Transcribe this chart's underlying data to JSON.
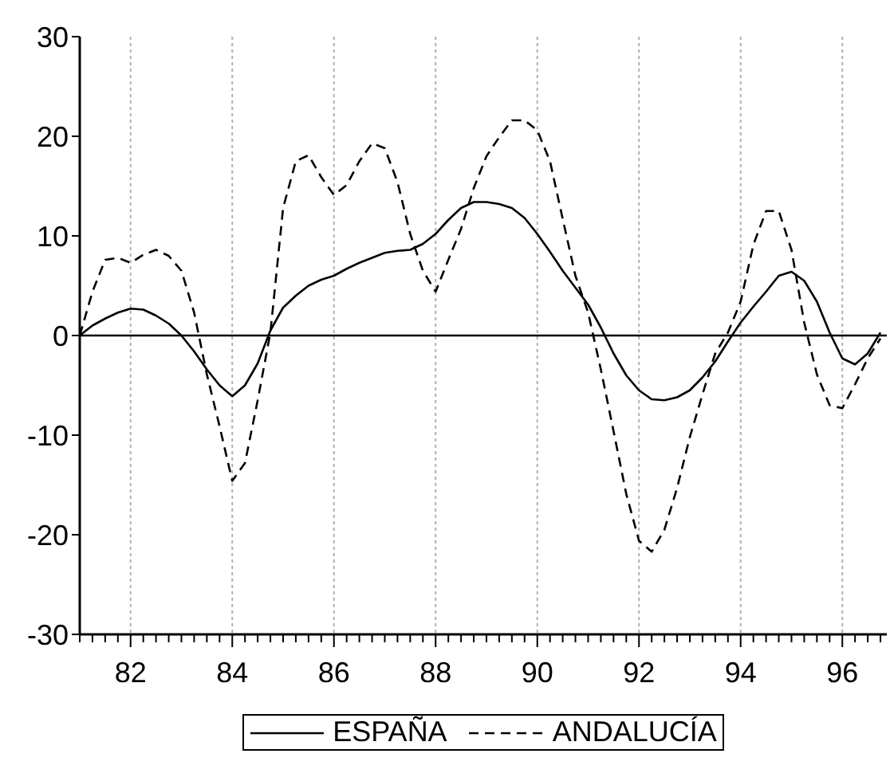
{
  "chart_data": {
    "type": "line",
    "x": [
      81,
      81.25,
      81.5,
      81.75,
      82,
      82.25,
      82.5,
      82.75,
      83,
      83.25,
      83.5,
      83.75,
      84,
      84.25,
      84.5,
      84.75,
      85,
      85.25,
      85.5,
      85.75,
      86,
      86.25,
      86.5,
      86.75,
      87,
      87.25,
      87.5,
      87.75,
      88,
      88.25,
      88.5,
      88.75,
      89,
      89.25,
      89.5,
      89.75,
      90,
      90.25,
      90.5,
      90.75,
      91,
      91.25,
      91.5,
      91.75,
      92,
      92.25,
      92.5,
      92.75,
      93,
      93.25,
      93.5,
      93.75,
      94,
      94.25,
      94.5,
      94.75,
      95,
      95.25,
      95.5,
      95.75,
      96,
      96.25,
      96.5,
      96.75
    ],
    "series": [
      {
        "name": "ESPAÑA",
        "color": "#000000",
        "line_style": "solid",
        "values": [
          0,
          1.0,
          1.7,
          2.3,
          2.7,
          2.6,
          2.0,
          1.2,
          0,
          -1.6,
          -3.4,
          -5.0,
          -6.1,
          -5.0,
          -2.8,
          0.5,
          2.8,
          4.0,
          5.0,
          5.6,
          6.0,
          6.7,
          7.3,
          7.8,
          8.3,
          8.5,
          8.6,
          9.2,
          10.2,
          11.6,
          12.8,
          13.4,
          13.4,
          13.2,
          12.8,
          11.8,
          10.2,
          8.4,
          6.5,
          4.8,
          3.1,
          0.8,
          -1.8,
          -4.0,
          -5.5,
          -6.4,
          -6.5,
          -6.2,
          -5.5,
          -4.2,
          -2.6,
          -0.6,
          1.3,
          2.9,
          4.4,
          6.0,
          6.4,
          5.5,
          3.4,
          0.3,
          -2.3,
          -2.9,
          -1.8,
          0.3
        ]
      },
      {
        "name": "ANDALUCÍA",
        "color": "#000000",
        "line_style": "dashed",
        "values": [
          0,
          4.4,
          7.6,
          7.8,
          7.3,
          8.1,
          8.6,
          8.0,
          6.5,
          2.3,
          -3.9,
          -9.1,
          -14.6,
          -12.8,
          -6.5,
          0.3,
          12.8,
          17.5,
          18.1,
          15.9,
          14.1,
          15.1,
          17.5,
          19.3,
          18.8,
          15.4,
          10.2,
          6.5,
          4.4,
          7.6,
          10.7,
          14.8,
          18.0,
          19.9,
          21.6,
          21.6,
          20.6,
          17.5,
          11.7,
          6.0,
          2.3,
          -3.4,
          -9.6,
          -15.9,
          -20.6,
          -21.7,
          -19.5,
          -15.3,
          -10.2,
          -5.9,
          -1.8,
          0.3,
          3.4,
          9.1,
          12.5,
          12.5,
          8.6,
          1.3,
          -3.9,
          -7.0,
          -7.3,
          -4.9,
          -2.3,
          -0.3
        ]
      }
    ],
    "xlim": [
      81,
      96.875
    ],
    "xticks": [
      {
        "value": 81,
        "label": null
      },
      {
        "value": 81.25,
        "label": null
      },
      {
        "value": 81.5,
        "label": null
      },
      {
        "value": 81.75,
        "label": null
      },
      82,
      {
        "value": 82.25,
        "label": null
      },
      {
        "value": 82.5,
        "label": null
      },
      {
        "value": 82.75,
        "label": null
      },
      {
        "value": 83,
        "label": null
      },
      {
        "value": 83.25,
        "label": null
      },
      {
        "value": 83.5,
        "label": null
      },
      {
        "value": 83.75,
        "label": null
      },
      84,
      {
        "value": 84.25,
        "label": null
      },
      {
        "value": 84.5,
        "label": null
      },
      {
        "value": 84.75,
        "label": null
      },
      {
        "value": 85,
        "label": null
      },
      {
        "value": 85.25,
        "label": null
      },
      {
        "value": 85.5,
        "label": null
      },
      {
        "value": 85.75,
        "label": null
      },
      86,
      {
        "value": 86.25,
        "label": null
      },
      {
        "value": 86.5,
        "label": null
      },
      {
        "value": 86.75,
        "label": null
      },
      {
        "value": 87,
        "label": null
      },
      {
        "value": 87.25,
        "label": null
      },
      {
        "value": 87.5,
        "label": null
      },
      {
        "value": 87.75,
        "label": null
      },
      88,
      {
        "value": 88.25,
        "label": null
      },
      {
        "value": 88.5,
        "label": null
      },
      {
        "value": 88.75,
        "label": null
      },
      {
        "value": 89,
        "label": null
      },
      {
        "value": 89.25,
        "label": null
      },
      {
        "value": 89.5,
        "label": null
      },
      {
        "value": 89.75,
        "label": null
      },
      90,
      {
        "value": 90.25,
        "label": null
      },
      {
        "value": 90.5,
        "label": null
      },
      {
        "value": 90.75,
        "label": null
      },
      {
        "value": 91,
        "label": null
      },
      {
        "value": 91.25,
        "label": null
      },
      {
        "value": 91.5,
        "label": null
      },
      {
        "value": 91.75,
        "label": null
      },
      92,
      {
        "value": 92.25,
        "label": null
      },
      {
        "value": 92.5,
        "label": null
      },
      {
        "value": 92.75,
        "label": null
      },
      {
        "value": 93,
        "label": null
      },
      {
        "value": 93.25,
        "label": null
      },
      {
        "value": 93.5,
        "label": null
      },
      {
        "value": 93.75,
        "label": null
      },
      94,
      {
        "value": 94.25,
        "label": null
      },
      {
        "value": 94.5,
        "label": null
      },
      {
        "value": 94.75,
        "label": null
      },
      {
        "value": 95,
        "label": null
      },
      {
        "value": 95.25,
        "label": null
      },
      {
        "value": 95.5,
        "label": null
      },
      {
        "value": 95.75,
        "label": null
      },
      96,
      {
        "value": 96.25,
        "label": null
      },
      {
        "value": 96.5,
        "label": null
      },
      {
        "value": 96.75,
        "label": null
      }
    ],
    "ylim": [
      -30,
      30
    ],
    "yticks": [
      -30,
      -20,
      -10,
      0,
      10,
      20,
      30
    ],
    "ref_lines": [
      {
        "axis": "y",
        "value": 0,
        "color": "#000000",
        "line_style": "solid"
      }
    ],
    "grid": "x",
    "legend": "bottom",
    "marker": "none"
  }
}
